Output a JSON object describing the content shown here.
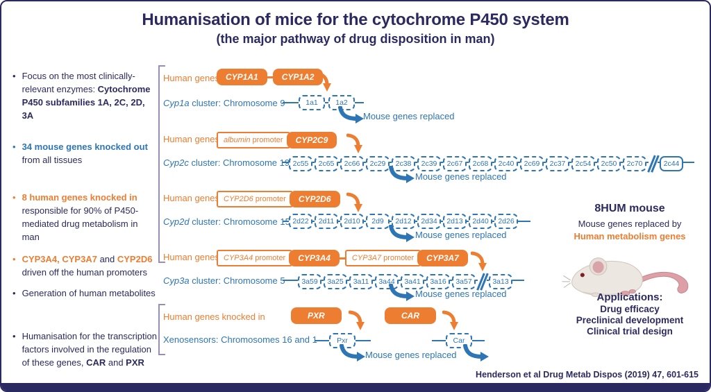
{
  "title": {
    "main": "Humanisation of mice for the cytochrome P450 system",
    "sub": "(the  major pathway of drug disposition in man)"
  },
  "colors": {
    "navy": "#2b2a60",
    "blue": "#2E75B6",
    "orange": "#ED7D31",
    "bracket": "#968eb4"
  },
  "bullets": [
    {
      "dot": "#2b2a60",
      "segments": [
        {
          "text": "Focus on the most clinically-relevant enzymes: "
        },
        {
          "text": "Cytochrome P450 subfamilies 1A, 2C, 2D, 3A",
          "bold": true
        }
      ]
    },
    {
      "dot": "#2E75B6",
      "segments": [
        {
          "text": "34 mouse genes knocked out",
          "bold": true,
          "color": "#2E75B6"
        },
        {
          "text": " from all tissues"
        }
      ]
    },
    {
      "dot": "#ED7D31",
      "segments": [
        {
          "text": "8 human genes knocked in",
          "bold": true,
          "color": "#ED7D31"
        },
        {
          "text": " responsible for 90% of P450-mediated drug metabolism in man"
        }
      ]
    },
    {
      "dot": "#ED7D31",
      "segments": [
        {
          "text": "CYP3A4, CYP3A7",
          "bold": true,
          "color": "#ED7D31"
        },
        {
          "text": " and "
        },
        {
          "text": "CYP2D6",
          "bold": true,
          "color": "#ED7D31"
        },
        {
          "text": " driven off the human promoters"
        }
      ]
    },
    {
      "dot": "#2b2a60",
      "segments": [
        {
          "text": "Generation of human metabolites"
        }
      ]
    },
    {
      "dot": "#2b2a60",
      "segments": [
        {
          "text": "Humanisation for the transcription factors involved in the regulation of these genes, "
        },
        {
          "text": "CAR",
          "bold": true
        },
        {
          "text": " and "
        },
        {
          "text": "PXR",
          "bold": true
        }
      ]
    }
  ],
  "sections": [
    {
      "human_label": "Human genes",
      "constructs": [
        [
          {
            "kind": "gene",
            "label": "CYP1A1"
          },
          {
            "kind": "conn"
          },
          {
            "kind": "gene",
            "label": "CYP1A2"
          }
        ]
      ],
      "cluster_em": "Cyp1a",
      "cluster_rest": " cluster: Chromosome 9",
      "genes": [
        {
          "label": "1a1"
        },
        {
          "label": "1a2"
        }
      ],
      "replaced": "Mouse genes replaced"
    },
    {
      "human_label": "Human genes",
      "constructs": [
        [
          {
            "kind": "promoter",
            "em": "albumin",
            "rest": "promoter"
          },
          {
            "kind": "gene",
            "label": "CYP2C9"
          }
        ]
      ],
      "cluster_em": "Cyp2c",
      "cluster_rest": " cluster: Chromosome 19",
      "genes": [
        {
          "label": "2c55"
        },
        {
          "label": "2c65"
        },
        {
          "label": "2c66"
        },
        {
          "label": "2c29"
        },
        {
          "label": "2c38"
        },
        {
          "label": "2c39"
        },
        {
          "label": "2c67"
        },
        {
          "label": "2c68"
        },
        {
          "label": "2c40"
        },
        {
          "label": "2c69"
        },
        {
          "label": "2c37"
        },
        {
          "label": "2c54"
        },
        {
          "label": "2c50"
        },
        {
          "label": "2c70"
        },
        {
          "kind": "break"
        },
        {
          "kind": "solid",
          "label": "2c44"
        }
      ],
      "replaced": "Mouse genes replaced"
    },
    {
      "human_label": "Human genes",
      "constructs": [
        [
          {
            "kind": "promoter",
            "em": "CYP2D6",
            "rest": "promoter"
          },
          {
            "kind": "gene",
            "label": "CYP2D6"
          }
        ]
      ],
      "cluster_em": "Cyp2d",
      "cluster_rest": " cluster: Chromosome 15",
      "genes": [
        {
          "label": "2d22"
        },
        {
          "label": "2d11"
        },
        {
          "label": "2d10"
        },
        {
          "label": "2d9"
        },
        {
          "label": "2d12"
        },
        {
          "label": "2d34"
        },
        {
          "label": "2d13"
        },
        {
          "label": "2d40"
        },
        {
          "label": "2d26"
        }
      ],
      "replaced": "Mouse genes replaced"
    },
    {
      "human_label": "Human genes",
      "constructs": [
        [
          {
            "kind": "promoter",
            "em": "CYP3A4",
            "rest": "promoter"
          },
          {
            "kind": "gene",
            "label": "CYP3A4"
          }
        ],
        [
          {
            "kind": "promoter",
            "em": "CYP3A7",
            "rest": "promoter"
          },
          {
            "kind": "gene",
            "label": "CYP3A7"
          }
        ]
      ],
      "cluster_em": "Cyp3a",
      "cluster_rest": " cluster: Chromosome 5",
      "genes": [
        {
          "label": "3a59"
        },
        {
          "label": "3a25"
        },
        {
          "label": "3a11"
        },
        {
          "label": "3a44"
        },
        {
          "label": "3a41"
        },
        {
          "label": "3a16"
        },
        {
          "label": "3a57"
        },
        {
          "kind": "break"
        },
        {
          "label": "3a13"
        }
      ],
      "replaced": "Mouse genes replaced"
    },
    {
      "human_label": "Human genes knocked in",
      "constructs": [
        [
          {
            "kind": "gene",
            "label": "PXR"
          }
        ],
        [
          {
            "kind": "gene",
            "label": "CAR"
          }
        ]
      ],
      "cluster_em": "",
      "cluster_rest": "Xenosensors: Chromosomes 16 and 1",
      "genes_a": [
        {
          "label": "Pxr"
        }
      ],
      "genes_b": [
        {
          "label": "Car"
        }
      ],
      "replaced": "Mouse genes replaced"
    }
  ],
  "panel": {
    "title": "8HUM mouse",
    "line1": "Mouse genes replaced by",
    "line2": "Human metabolism genes",
    "applications_title": "Applications:",
    "applications": [
      "Drug efficacy",
      "Preclinical development",
      "Clinical trial design"
    ]
  },
  "citation": "Henderson et al Drug Metab Dispos (2019)  47, 601-615"
}
